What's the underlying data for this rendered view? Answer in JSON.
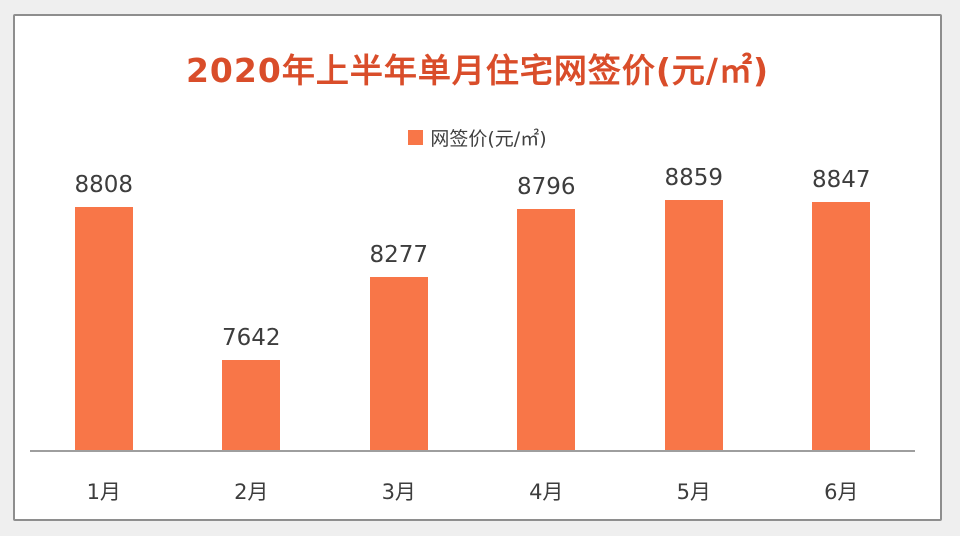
{
  "chart_data": {
    "type": "bar",
    "title": "2020年上半年单月住宅网签价(元/㎡)",
    "legend": "网签价(元/㎡)",
    "series_name": "网签价(元/㎡)",
    "categories": [
      "1月",
      "2月",
      "3月",
      "4月",
      "5月",
      "6月"
    ],
    "values": [
      8808,
      7642,
      8277,
      8796,
      8859,
      8847
    ],
    "ylim": [
      6950,
      9000
    ],
    "grid": false,
    "value_labels": true,
    "legend_position": "top-center",
    "colors": {
      "bar": "#f87648",
      "title": "#d94d2a",
      "value_label": "#3d3d3d",
      "axis_line": "#9e9e9e",
      "card_border": "#8e8e8e",
      "card_background": "#ffffff",
      "page_background": "#efefef"
    }
  }
}
